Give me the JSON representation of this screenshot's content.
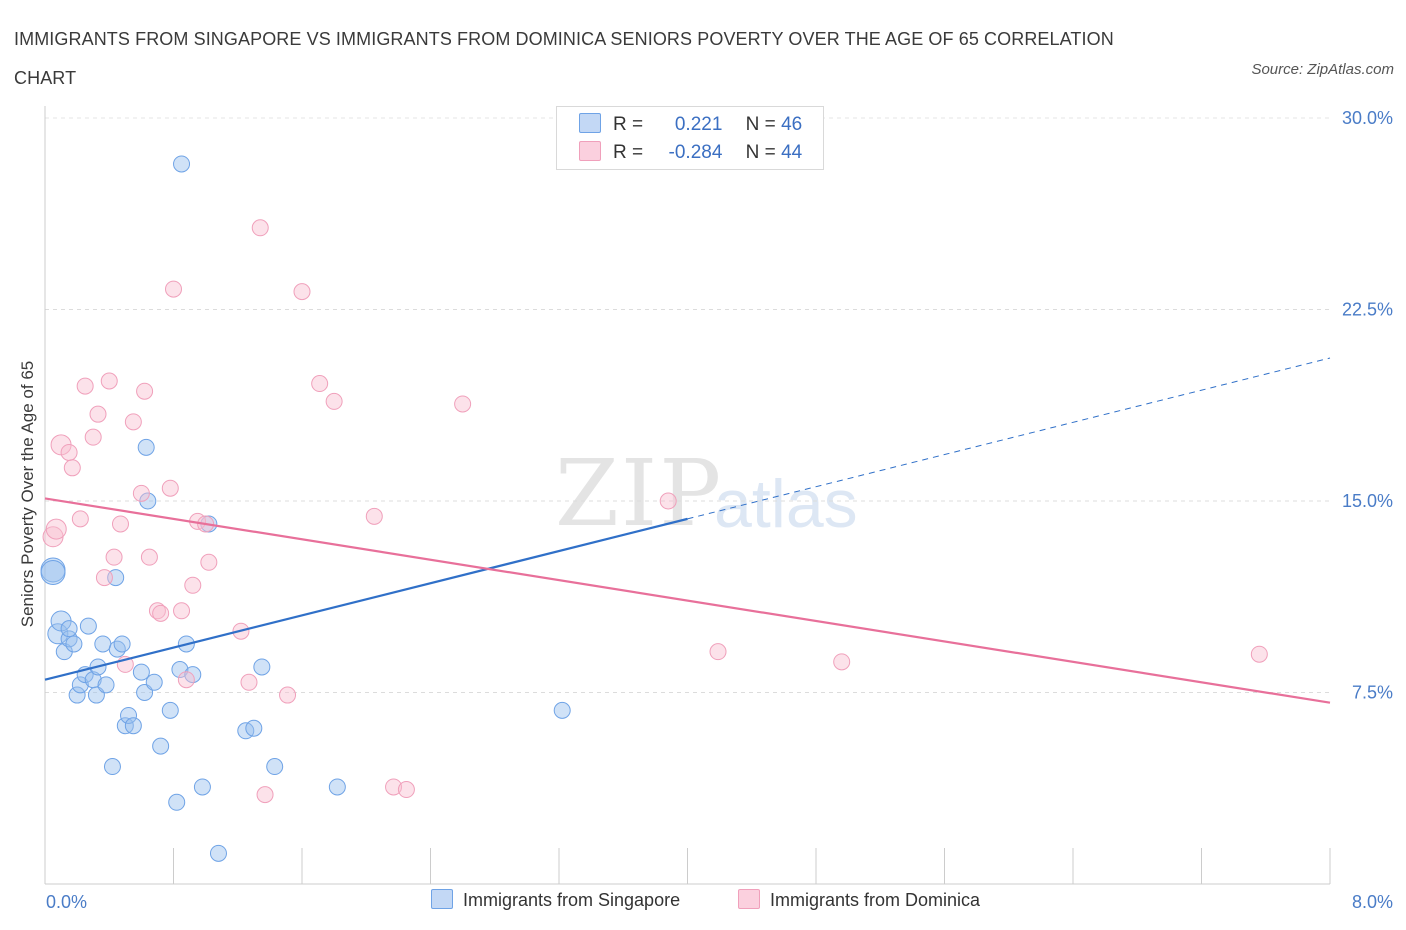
{
  "title": "IMMIGRANTS FROM SINGAPORE VS IMMIGRANTS FROM DOMINICA SENIORS POVERTY OVER THE AGE OF 65 CORRELATION CHART",
  "source": "Source: ZipAtlas.com",
  "watermark": {
    "zip": "ZIP",
    "atlas": "atlas"
  },
  "legend": {
    "r_label": "R =",
    "n_label": "N =",
    "rows": [
      {
        "r": "0.221",
        "n": "46"
      },
      {
        "r": "-0.284",
        "n": "44"
      }
    ]
  },
  "colors": {
    "singapore": "#6fa3e6",
    "dominica": "#f0a0bb",
    "singapore_line": "#3070c8",
    "dominica_line": "#e8709a"
  },
  "chart_data": {
    "type": "scatter",
    "title": "IMMIGRANTS FROM SINGAPORE VS IMMIGRANTS FROM DOMINICA SENIORS POVERTY OVER THE AGE OF 65 CORRELATION CHART",
    "xlabel": "",
    "ylabel": "Seniors Poverty Over the Age of 65",
    "xlim": [
      0,
      8
    ],
    "ylim": [
      0,
      30
    ],
    "x_tick_labels": [
      "0.0%",
      "8.0%"
    ],
    "y_ticks": [
      7.5,
      15.0,
      22.5,
      30.0
    ],
    "y_tick_labels": [
      "7.5%",
      "15.0%",
      "22.5%",
      "30.0%"
    ],
    "grid": true,
    "legend_position": "bottom",
    "series": [
      {
        "name": "Immigrants from Singapore",
        "trend": {
          "x": [
            0,
            4.0
          ],
          "y": [
            8.0,
            14.3
          ],
          "dashed_to": [
            8.0,
            20.6
          ]
        },
        "points": [
          [
            0.05,
            12.3
          ],
          [
            0.05,
            12.2
          ],
          [
            0.08,
            9.8
          ],
          [
            0.1,
            10.3
          ],
          [
            0.12,
            9.1
          ],
          [
            0.15,
            9.6
          ],
          [
            0.15,
            10.0
          ],
          [
            0.18,
            9.4
          ],
          [
            0.2,
            7.4
          ],
          [
            0.22,
            7.8
          ],
          [
            0.25,
            8.2
          ],
          [
            0.27,
            10.1
          ],
          [
            0.3,
            8.0
          ],
          [
            0.32,
            7.4
          ],
          [
            0.33,
            8.5
          ],
          [
            0.36,
            9.4
          ],
          [
            0.38,
            7.8
          ],
          [
            0.42,
            4.6
          ],
          [
            0.44,
            12.0
          ],
          [
            0.45,
            9.2
          ],
          [
            0.48,
            9.4
          ],
          [
            0.5,
            6.2
          ],
          [
            0.52,
            6.6
          ],
          [
            0.55,
            6.2
          ],
          [
            0.6,
            8.3
          ],
          [
            0.62,
            7.5
          ],
          [
            0.63,
            17.1
          ],
          [
            0.64,
            15.0
          ],
          [
            0.68,
            7.9
          ],
          [
            0.72,
            5.4
          ],
          [
            0.78,
            6.8
          ],
          [
            0.82,
            3.2
          ],
          [
            0.84,
            8.4
          ],
          [
            0.85,
            28.2
          ],
          [
            0.88,
            9.4
          ],
          [
            0.92,
            8.2
          ],
          [
            0.98,
            3.8
          ],
          [
            1.02,
            14.1
          ],
          [
            1.08,
            1.2
          ],
          [
            1.25,
            6.0
          ],
          [
            1.3,
            6.1
          ],
          [
            1.35,
            8.5
          ],
          [
            1.43,
            4.6
          ],
          [
            1.82,
            3.8
          ],
          [
            3.22,
            6.8
          ],
          [
            3.86,
            29.2
          ]
        ]
      },
      {
        "name": "Immigrants from Dominica",
        "trend": {
          "x": [
            0,
            8.0
          ],
          "y": [
            15.1,
            7.1
          ]
        },
        "points": [
          [
            0.05,
            13.6
          ],
          [
            0.07,
            13.9
          ],
          [
            0.1,
            17.2
          ],
          [
            0.15,
            16.9
          ],
          [
            0.17,
            16.3
          ],
          [
            0.22,
            14.3
          ],
          [
            0.25,
            19.5
          ],
          [
            0.3,
            17.5
          ],
          [
            0.33,
            18.4
          ],
          [
            0.37,
            12.0
          ],
          [
            0.4,
            19.7
          ],
          [
            0.43,
            12.8
          ],
          [
            0.47,
            14.1
          ],
          [
            0.5,
            8.6
          ],
          [
            0.55,
            18.1
          ],
          [
            0.6,
            15.3
          ],
          [
            0.62,
            19.3
          ],
          [
            0.65,
            12.8
          ],
          [
            0.7,
            10.7
          ],
          [
            0.72,
            10.6
          ],
          [
            0.78,
            15.5
          ],
          [
            0.8,
            23.3
          ],
          [
            0.85,
            10.7
          ],
          [
            0.88,
            8.0
          ],
          [
            0.92,
            11.7
          ],
          [
            0.95,
            14.2
          ],
          [
            1.0,
            14.1
          ],
          [
            1.02,
            12.6
          ],
          [
            1.22,
            9.9
          ],
          [
            1.27,
            7.9
          ],
          [
            1.34,
            25.7
          ],
          [
            1.37,
            3.5
          ],
          [
            1.51,
            7.4
          ],
          [
            1.6,
            23.2
          ],
          [
            1.71,
            19.6
          ],
          [
            1.8,
            18.9
          ],
          [
            2.05,
            14.4
          ],
          [
            2.17,
            3.8
          ],
          [
            2.25,
            3.7
          ],
          [
            2.6,
            18.8
          ],
          [
            3.88,
            15.0
          ],
          [
            4.19,
            9.1
          ],
          [
            4.96,
            8.7
          ],
          [
            7.56,
            9.0
          ]
        ]
      }
    ]
  },
  "bottom_legend": [
    "Immigrants from Singapore",
    "Immigrants from Dominica"
  ]
}
